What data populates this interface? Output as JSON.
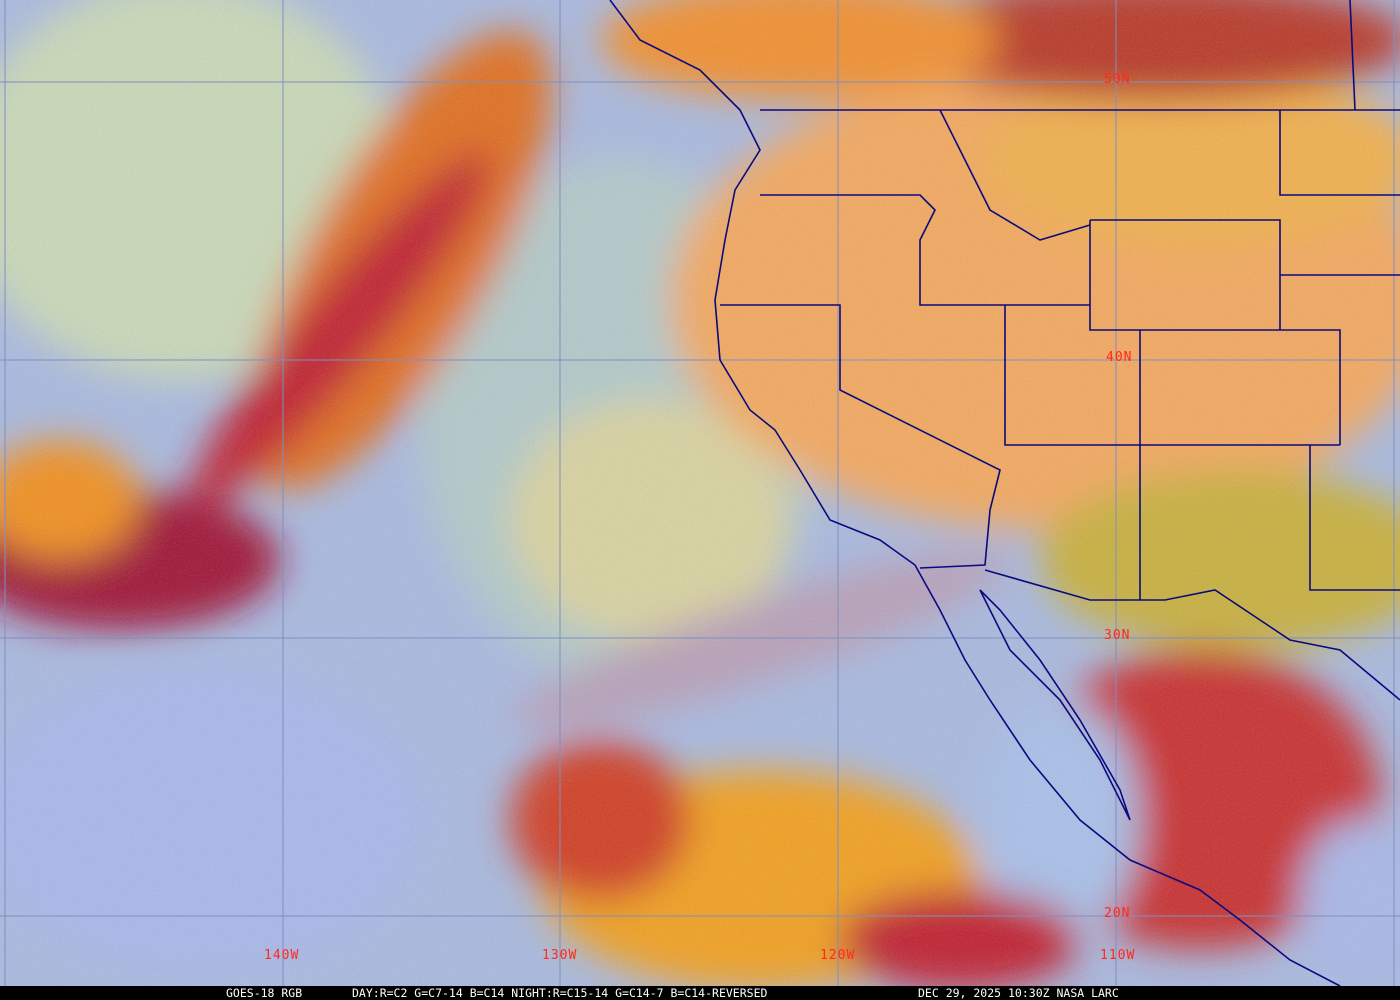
{
  "caption": {
    "product": "GOES-18 RGB",
    "recipe": "DAY:R=C2 G=C7-14 B=C14 NIGHT:R=C15-14 G=C14-7 B=C14-REVERSED",
    "timestamp": "DEC 29, 2025 10:30Z NASA LARC"
  },
  "latitude_labels": [
    "50N",
    "40N",
    "30N",
    "20N"
  ],
  "longitude_labels": [
    "140W",
    "130W",
    "120W",
    "110W"
  ],
  "colors": {
    "grid": "#7f8fbf",
    "boundaries": "#0a0a80",
    "labels": "#ff2a1a",
    "clear_ocean": "#a8c4c8",
    "land": "#f2a860",
    "high_cloud": "#c0202a",
    "mid_cloud": "#f09020",
    "low_cloud": "#a8b8e8"
  }
}
